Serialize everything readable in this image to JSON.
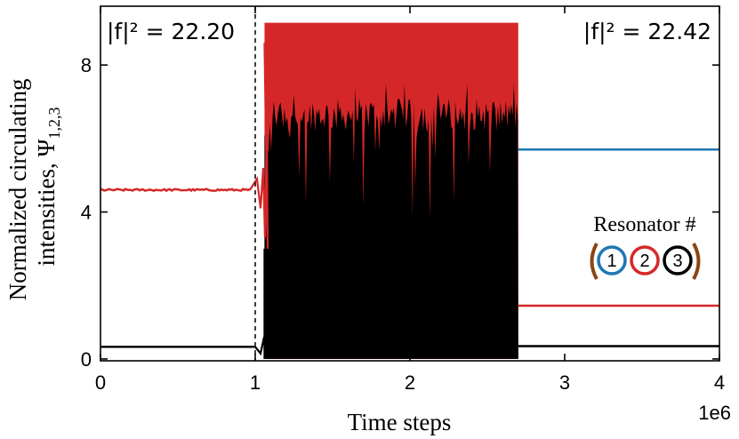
{
  "chart_data": {
    "type": "line",
    "xlabel": "Time steps",
    "ylabel": "Normalized circulating intensities, Ψ",
    "ylabel_sub": "1,2,3",
    "x_offset_label": "1e6",
    "xlim": [
      0,
      4000000
    ],
    "ylim": [
      -0.05,
      9.6
    ],
    "x_ticks": [
      0,
      1000000,
      2000000,
      3000000,
      4000000
    ],
    "x_tick_labels": [
      "0",
      "1",
      "2",
      "3",
      "4"
    ],
    "y_ticks": [
      0,
      4,
      8
    ],
    "y_tick_labels": [
      "0",
      "4",
      "8"
    ],
    "grid": false,
    "annotations": [
      {
        "text": "|f|² = 22.20",
        "position": "top-left"
      },
      {
        "text": "|f|² = 22.42",
        "position": "top-right"
      }
    ],
    "switch_time": 1000000,
    "series": [
      {
        "resonator": 1,
        "color": "#1f77b4",
        "segments": [
          {
            "x": [
              0,
              1000000
            ],
            "value": 0.33
          },
          {
            "x": [
              2700000,
              4000000
            ],
            "value": 5.7
          }
        ]
      },
      {
        "resonator": 2,
        "color": "#d62728",
        "segments": [
          {
            "x": [
              0,
              1000000
            ],
            "value": 4.6
          },
          {
            "x": [
              1060000,
              2700000
            ],
            "range": [
              0.0,
              9.15
            ]
          },
          {
            "x": [
              2700000,
              4000000
            ],
            "value": 1.45
          }
        ]
      },
      {
        "resonator": 3,
        "color": "#000000",
        "segments": [
          {
            "x": [
              0,
              1000000
            ],
            "value": 0.33
          },
          {
            "x": [
              1060000,
              2700000
            ],
            "range": [
              0.0,
              7.5
            ]
          },
          {
            "x": [
              2700000,
              4000000
            ],
            "value": 0.35
          }
        ]
      }
    ]
  },
  "legend": {
    "title": "Resonator #",
    "items": [
      "1",
      "2",
      "3"
    ],
    "colors": [
      "#1f77b4",
      "#d62728",
      "#000000"
    ],
    "mirror_color": "#8b4513"
  }
}
